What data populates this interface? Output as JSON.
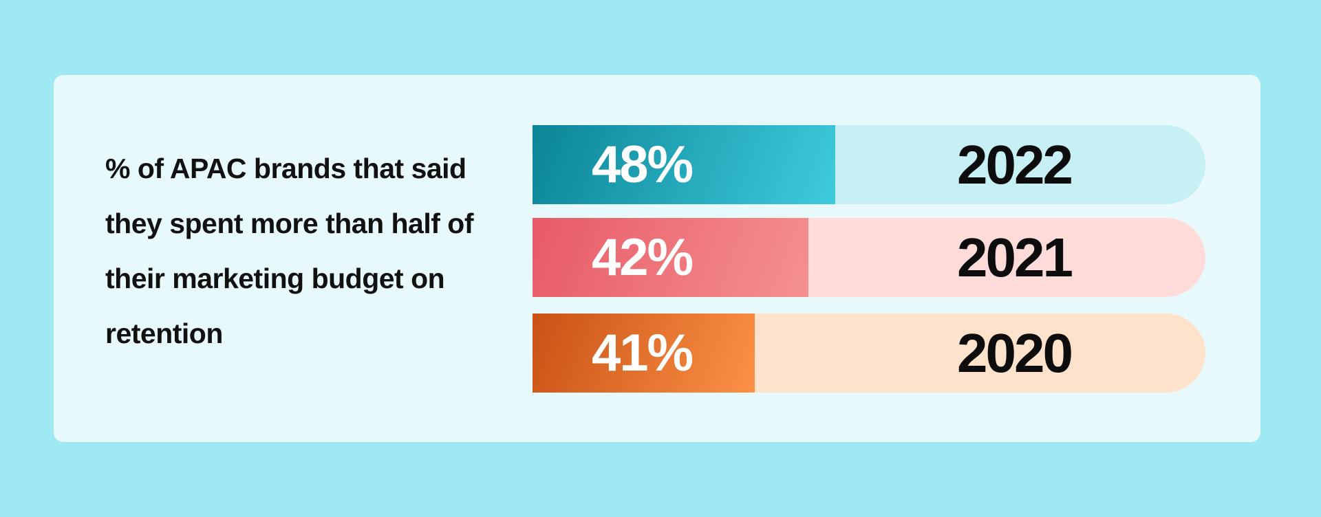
{
  "chart_data": {
    "type": "bar",
    "orientation": "horizontal",
    "title": "% of APAC brands that said they spent more than half of their marketing budget on retention",
    "categories": [
      "2022",
      "2021",
      "2020"
    ],
    "values": [
      48,
      42,
      41
    ],
    "value_labels": [
      "48%",
      "42%",
      "41%"
    ],
    "unit": "%",
    "colors": [
      {
        "fill_start": "#0b8598",
        "fill_end": "#3ecbdc",
        "track": "#c6f0f4"
      },
      {
        "fill_start": "#e85a68",
        "fill_end": "#f5918f",
        "track": "#ffdcda"
      },
      {
        "fill_start": "#c95214",
        "fill_end": "#fc9147",
        "track": "#ffe2cc"
      }
    ],
    "background": "#9fe9f2",
    "card_color": "#e8f9fb"
  }
}
